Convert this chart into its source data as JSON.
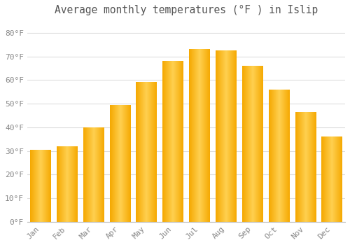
{
  "months": [
    "Jan",
    "Feb",
    "Mar",
    "Apr",
    "May",
    "Jun",
    "Jul",
    "Aug",
    "Sep",
    "Oct",
    "Nov",
    "Dec"
  ],
  "temperatures": [
    30.5,
    32,
    40,
    49.5,
    59,
    68,
    73,
    72.5,
    66,
    56,
    46.5,
    36
  ],
  "bar_color_outer": "#F5A800",
  "bar_color_inner": "#FFD050",
  "title": "Average monthly temperatures (°F ) in Islip",
  "title_fontsize": 10.5,
  "ylim": [
    0,
    85
  ],
  "yticks": [
    0,
    10,
    20,
    30,
    40,
    50,
    60,
    70,
    80
  ],
  "ytick_labels": [
    "0°F",
    "10°F",
    "20°F",
    "30°F",
    "40°F",
    "50°F",
    "60°F",
    "70°F",
    "80°F"
  ],
  "background_color": "#FFFFFF",
  "plot_bg_color": "#FFFFFF",
  "grid_color": "#DDDDDD",
  "tick_label_fontsize": 8,
  "tick_label_color": "#888888",
  "title_color": "#555555",
  "bar_width": 0.78
}
